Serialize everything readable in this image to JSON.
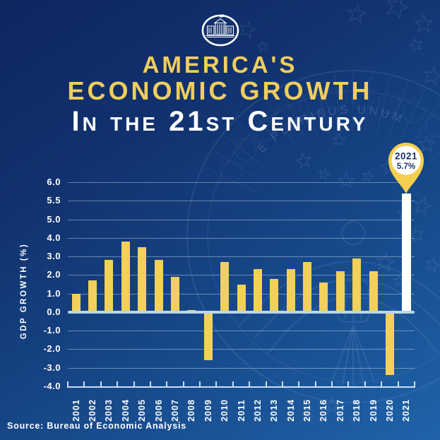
{
  "header": {
    "logo": "white-house-logo",
    "title_line1": "America's",
    "title_line2": "Economic Growth",
    "title_line3": "In the 21st Century"
  },
  "background": {
    "seal_motto": "E PLURIBUS UNUM"
  },
  "chart_data": {
    "type": "bar",
    "title": "America's Economic Growth in the 21st Century",
    "xlabel": "",
    "ylabel": "GDP Growth (%)",
    "categories": [
      "2001",
      "2002",
      "2003",
      "2004",
      "2005",
      "2006",
      "2007",
      "2008",
      "2009",
      "2010",
      "2011",
      "2012",
      "2013",
      "2014",
      "2015",
      "2016",
      "2017",
      "2018",
      "2019",
      "2020",
      "2021"
    ],
    "values": [
      1.0,
      1.7,
      2.8,
      3.8,
      3.5,
      2.8,
      1.9,
      0.1,
      -2.6,
      2.7,
      1.5,
      2.3,
      1.8,
      2.3,
      2.7,
      1.6,
      2.2,
      2.9,
      2.2,
      -3.4,
      5.7
    ],
    "yticks": [
      6.0,
      5.5,
      5.0,
      4.0,
      3.0,
      2.0,
      1.0,
      0.0,
      -1.0,
      -2.0,
      -3.0,
      -4.0
    ],
    "ytick_labels": [
      "6.0",
      "5.5",
      "5.0",
      "4.0",
      "3.0",
      "2.0",
      "1.0",
      "0.0",
      "-1.0",
      "-2.0",
      "-3.0",
      "-4.0"
    ],
    "ylim": [
      -4.0,
      6.0
    ],
    "grid": true,
    "legend": "none",
    "axis_note": "y-axis tick marks are evenly spaced even though increments change from 1.0 to 0.5 above 5.0 (5.0, 5.5, 6.0)",
    "bar_color": "#F2D05A",
    "highlight": {
      "year": "2021",
      "value_label": "5.7%",
      "bar_color": "#FFFFFF"
    }
  },
  "source": {
    "text": "Source: Bureau of Economic Analysis"
  },
  "colors": {
    "background_top": "#0E2760",
    "background_bottom": "#1F63A9",
    "title_gold": "#F0CE5C",
    "text_white": "#FFFFFF",
    "zero_line": "#B9D7EC",
    "axis_line": "#C9DEF1",
    "gridline": "rgba(205,225,245,0.45)",
    "pin_gold": "#F5CE4E",
    "pin_text_navy": "#1C3468",
    "watermark_blue": "#BCD7F5"
  }
}
